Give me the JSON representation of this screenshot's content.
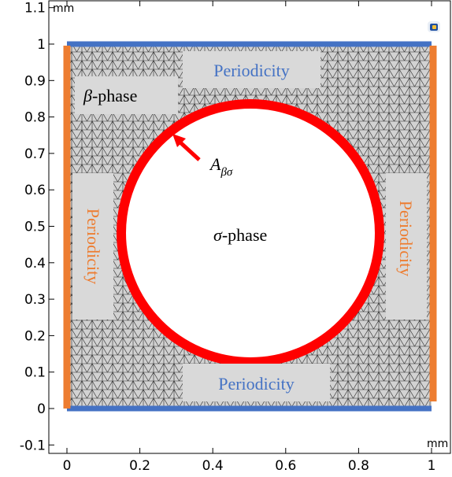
{
  "axes": {
    "x_unit": "mm",
    "y_unit": "mm",
    "x_ticks": [
      "0",
      "0.2",
      "0.4",
      "0.6",
      "0.8",
      "1"
    ],
    "y_ticks": [
      "-0.1",
      "0",
      "0.1",
      "0.2",
      "0.3",
      "0.4",
      "0.5",
      "0.6",
      "0.7",
      "0.8",
      "0.9",
      "1",
      "1.1"
    ]
  },
  "labels": {
    "periodicity_top": "Periodicity",
    "periodicity_bottom": "Periodicity",
    "periodicity_left": "Periodicity",
    "periodicity_right": "Periodicity",
    "beta_symbol": "β",
    "beta_suffix": "-phase",
    "sigma_symbol": "σ",
    "sigma_suffix": "-phase",
    "interface_base": "A",
    "interface_sub": "βσ"
  },
  "colors": {
    "interface_ring": "#ff0000",
    "periodic_horizontal": "#4472c4",
    "periodic_vertical": "#ed7d31",
    "mesh_line": "#333333",
    "mesh_fill": "#d0d0d0"
  },
  "icons": [
    "comsol-logo-icon"
  ]
}
